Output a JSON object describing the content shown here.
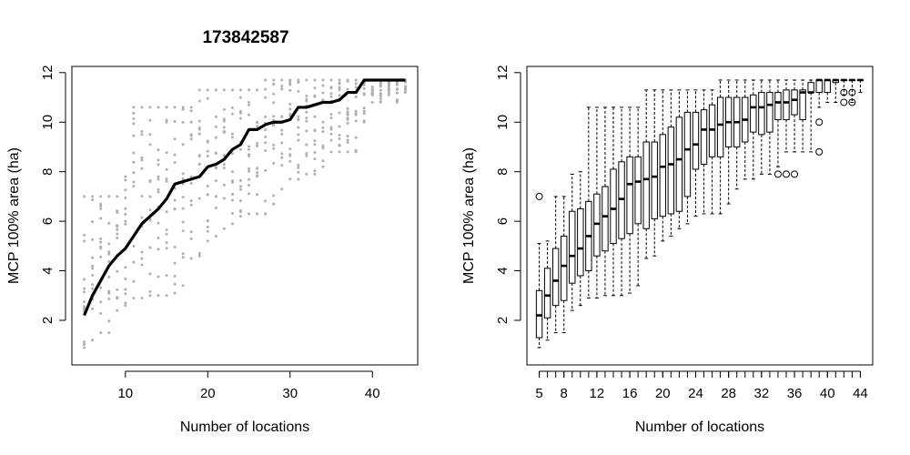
{
  "chart_data": [
    {
      "type": "scatter",
      "title": "173842587",
      "xlabel": "Number of locations",
      "ylabel": "MCP 100% area (ha)",
      "xlim": [
        3.5,
        45.5
      ],
      "ylim": [
        0.2,
        12.25
      ],
      "xticks": [
        "10",
        "20",
        "30",
        "40"
      ],
      "yticks": [
        "2",
        "4",
        "6",
        "8",
        "10",
        "12"
      ],
      "grid": false,
      "point_color": "#b0b0b0",
      "line_color": "#000000",
      "x": [
        5,
        6,
        7,
        8,
        9,
        10,
        11,
        12,
        13,
        14,
        15,
        16,
        17,
        18,
        19,
        20,
        21,
        22,
        23,
        24,
        25,
        26,
        27,
        28,
        29,
        30,
        31,
        32,
        33,
        34,
        35,
        36,
        37,
        38,
        39,
        40,
        41,
        42,
        43,
        44
      ],
      "scatter_min": [
        0.9,
        1.2,
        1.5,
        1.5,
        2.4,
        2.6,
        2.9,
        2.9,
        3.0,
        3.0,
        3.0,
        3.1,
        3.4,
        4.5,
        4.6,
        5.2,
        5.4,
        5.7,
        5.9,
        6.2,
        6.3,
        6.3,
        6.3,
        6.7,
        7.3,
        7.7,
        7.7,
        7.9,
        7.9,
        8.2,
        8.8,
        8.8,
        8.8,
        8.8,
        10.0,
        10.8,
        10.8,
        11.1,
        10.8,
        11.2
      ],
      "scatter_max": [
        7.0,
        7.0,
        7.0,
        7.0,
        7.0,
        7.8,
        10.6,
        10.6,
        10.6,
        10.6,
        10.6,
        10.6,
        10.6,
        10.6,
        11.3,
        11.3,
        11.3,
        11.3,
        11.3,
        11.3,
        11.3,
        11.3,
        11.7,
        11.7,
        11.7,
        11.7,
        11.7,
        11.7,
        11.7,
        11.7,
        11.7,
        11.7,
        11.7,
        11.7,
        11.7,
        11.7,
        11.7,
        11.7,
        11.7,
        11.7
      ],
      "series": [
        {
          "name": "",
          "values": [
            2.2,
            3.0,
            3.6,
            4.2,
            4.6,
            4.9,
            5.4,
            5.9,
            6.2,
            6.5,
            6.9,
            7.5,
            7.6,
            7.7,
            7.8,
            8.2,
            8.3,
            8.5,
            8.9,
            9.1,
            9.7,
            9.7,
            9.9,
            10.0,
            10.0,
            10.1,
            10.6,
            10.6,
            10.7,
            10.8,
            10.8,
            10.9,
            11.2,
            11.2,
            11.7,
            11.7,
            11.7,
            11.7,
            11.7,
            11.7
          ]
        }
      ]
    },
    {
      "type": "box",
      "title": "",
      "xlabel": "Number of locations",
      "ylabel": "MCP 100% area (ha)",
      "xlim": [
        3.5,
        45.5
      ],
      "ylim": [
        0.2,
        12.25
      ],
      "xticks": [
        "5",
        "8",
        "12",
        "16",
        "20",
        "24",
        "28",
        "32",
        "36",
        "40",
        "44"
      ],
      "yticks": [
        "2",
        "4",
        "6",
        "8",
        "10",
        "12"
      ],
      "grid": false,
      "x": [
        5,
        6,
        7,
        8,
        9,
        10,
        11,
        12,
        13,
        14,
        15,
        16,
        17,
        18,
        19,
        20,
        21,
        22,
        23,
        24,
        25,
        26,
        27,
        28,
        29,
        30,
        31,
        32,
        33,
        34,
        35,
        36,
        37,
        38,
        39,
        40,
        41,
        42,
        43,
        44
      ],
      "whisker_low": [
        0.9,
        1.2,
        1.5,
        1.5,
        2.4,
        2.6,
        2.9,
        2.9,
        3.0,
        3.0,
        3.0,
        3.1,
        3.4,
        4.5,
        4.6,
        5.2,
        5.4,
        5.7,
        5.9,
        6.2,
        6.3,
        6.3,
        6.3,
        6.7,
        7.3,
        7.7,
        7.7,
        7.9,
        7.9,
        8.2,
        8.8,
        8.8,
        8.8,
        8.8,
        10.6,
        10.8,
        10.8,
        11.1,
        10.8,
        11.2
      ],
      "q1": [
        1.3,
        2.1,
        2.6,
        2.8,
        3.5,
        3.8,
        4.0,
        4.6,
        4.8,
        5.1,
        5.3,
        5.5,
        5.9,
        5.7,
        6.1,
        6.2,
        6.3,
        6.4,
        7.0,
        8.1,
        8.3,
        8.6,
        8.6,
        9.0,
        9.0,
        9.2,
        9.6,
        9.5,
        9.6,
        10.1,
        10.1,
        10.3,
        10.1,
        11.2,
        11.2,
        11.2,
        11.6,
        11.7,
        11.7,
        11.7
      ],
      "median": [
        2.2,
        3.0,
        3.6,
        4.2,
        4.6,
        4.9,
        5.4,
        5.9,
        6.2,
        6.5,
        6.9,
        7.5,
        7.6,
        7.7,
        7.8,
        8.2,
        8.3,
        8.5,
        8.9,
        9.1,
        9.7,
        9.7,
        9.9,
        10.0,
        10.0,
        10.1,
        10.6,
        10.6,
        10.7,
        10.8,
        10.8,
        10.9,
        11.2,
        11.2,
        11.7,
        11.7,
        11.7,
        11.7,
        11.7,
        11.7
      ],
      "q3": [
        3.2,
        4.1,
        4.9,
        5.4,
        6.4,
        6.5,
        6.8,
        7.1,
        7.4,
        8.1,
        8.4,
        8.6,
        8.6,
        9.2,
        9.2,
        9.5,
        9.8,
        10.2,
        10.4,
        10.4,
        10.5,
        10.7,
        11.0,
        11.0,
        11.0,
        11.0,
        11.1,
        11.2,
        11.2,
        11.2,
        11.3,
        11.3,
        11.3,
        11.6,
        11.7,
        11.7,
        11.7,
        11.7,
        11.7,
        11.7
      ],
      "whisker_high": [
        5.1,
        5.2,
        7.0,
        7.0,
        7.9,
        8.0,
        10.6,
        10.6,
        10.6,
        10.6,
        10.6,
        10.6,
        10.6,
        11.3,
        11.3,
        11.3,
        11.3,
        11.3,
        11.3,
        11.3,
        11.3,
        11.3,
        11.7,
        11.7,
        11.7,
        11.7,
        11.7,
        11.7,
        11.7,
        11.7,
        11.7,
        11.7,
        11.7,
        11.7,
        11.7,
        11.7,
        11.7,
        11.7,
        11.7,
        11.7
      ],
      "outliers": [
        {
          "x": 5,
          "y": 7.0
        },
        {
          "x": 34,
          "y": 7.9
        },
        {
          "x": 35,
          "y": 7.9
        },
        {
          "x": 36,
          "y": 7.9
        },
        {
          "x": 39,
          "y": 8.8
        },
        {
          "x": 39,
          "y": 10.0
        },
        {
          "x": 42,
          "y": 10.8
        },
        {
          "x": 43,
          "y": 10.8
        },
        {
          "x": 42,
          "y": 11.2
        },
        {
          "x": 43,
          "y": 11.2
        }
      ]
    }
  ]
}
